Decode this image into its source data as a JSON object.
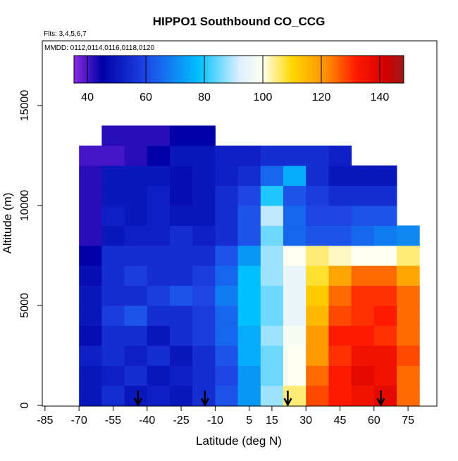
{
  "chart_data": {
    "type": "heatmap",
    "title": "HIPPO1 Southbound CO_CCG",
    "annotations": [
      "Flts: 3,4,5,6,7",
      "MMDD: 0112,0114,0116,0118,0120"
    ],
    "x_label": "Latitude (deg N)",
    "y_label": "Altitude (m)",
    "xlim": [
      -86.2,
      87.7
    ],
    "xticks": [
      -85,
      -70,
      -55,
      -40,
      -25,
      -10,
      5,
      15,
      30,
      45,
      60,
      75
    ],
    "ylim": [
      -35,
      18240
    ],
    "yticks": [
      0,
      5000,
      10000,
      15000
    ],
    "x_edges": [
      -70,
      -60,
      -50,
      -40,
      -30,
      -20,
      -10,
      0,
      10,
      20,
      30,
      40,
      50,
      60,
      70,
      80
    ],
    "y_edges": [
      0,
      1000,
      2000,
      3000,
      4000,
      5000,
      6000,
      7000,
      8000,
      9000,
      10000,
      11000,
      12000,
      13000,
      14000
    ],
    "z": [
      [
        50,
        55,
        50,
        52,
        50,
        55,
        62,
        72,
        88,
        105,
        128,
        132,
        135,
        138,
        125
      ],
      [
        50,
        52,
        55,
        50,
        52,
        55,
        60,
        72,
        85,
        100,
        125,
        132,
        138,
        135,
        125
      ],
      [
        52,
        55,
        52,
        55,
        50,
        55,
        62,
        75,
        85,
        100,
        120,
        130,
        135,
        135,
        128
      ],
      [
        48,
        55,
        55,
        50,
        55,
        58,
        65,
        75,
        88,
        98,
        120,
        132,
        132,
        130,
        125
      ],
      [
        50,
        58,
        62,
        55,
        55,
        58,
        65,
        78,
        85,
        95,
        115,
        128,
        130,
        132,
        125
      ],
      [
        50,
        55,
        55,
        58,
        62,
        60,
        68,
        78,
        85,
        95,
        112,
        125,
        130,
        130,
        125
      ],
      [
        48,
        55,
        58,
        55,
        55,
        58,
        65,
        78,
        88,
        95,
        108,
        118,
        125,
        125,
        118
      ],
      [
        45,
        55,
        55,
        55,
        55,
        55,
        62,
        72,
        88,
        100,
        105,
        102,
        100,
        100,
        105
      ],
      [
        42,
        50,
        52,
        52,
        55,
        52,
        55,
        62,
        85,
        65,
        62,
        62,
        65,
        68,
        70
      ],
      [
        42,
        52,
        50,
        52,
        50,
        50,
        55,
        62,
        90,
        65,
        60,
        60,
        62,
        62,
        null
      ],
      [
        42,
        50,
        50,
        52,
        48,
        50,
        55,
        60,
        80,
        62,
        58,
        55,
        55,
        55,
        null
      ],
      [
        42,
        50,
        50,
        50,
        48,
        50,
        52,
        55,
        65,
        75,
        55,
        50,
        50,
        50,
        null
      ],
      [
        40,
        40,
        42,
        45,
        50,
        50,
        52,
        52,
        55,
        55,
        55,
        52,
        null,
        null,
        null
      ],
      [
        null,
        42,
        42,
        42,
        45,
        45,
        null,
        null,
        null,
        null,
        null,
        null,
        null,
        null,
        null
      ]
    ],
    "colorbar_lim": [
      35.4,
      148.2
    ],
    "colorbar_ticks": [
      40,
      60,
      80,
      100,
      120,
      140
    ],
    "colorscale": [
      [
        35,
        "#8a2be2"
      ],
      [
        45,
        "#0000a8"
      ],
      [
        60,
        "#1f45e6"
      ],
      [
        78,
        "#00c0ff"
      ],
      [
        92,
        "#dcefff"
      ],
      [
        100,
        "#fffff0"
      ],
      [
        110,
        "#ffd700"
      ],
      [
        122,
        "#ff8c00"
      ],
      [
        132,
        "#ff1a00"
      ],
      [
        142,
        "#d40000"
      ],
      [
        148,
        "#a01818"
      ]
    ],
    "markers": [
      -44,
      -14.5,
      22,
      63
    ]
  }
}
